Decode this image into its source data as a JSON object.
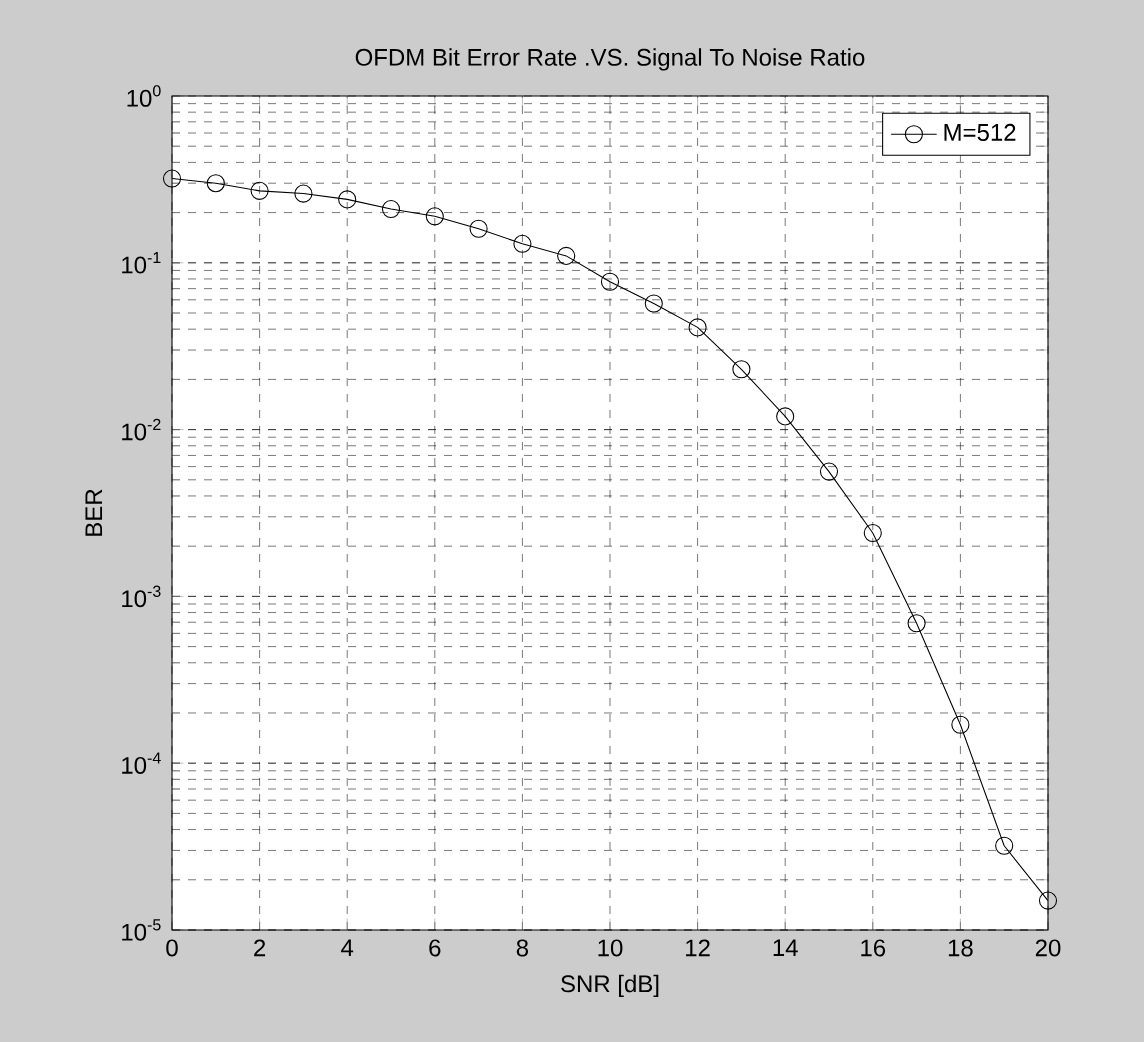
{
  "chart_data": {
    "type": "line",
    "title": "OFDM Bit Error Rate .VS. Signal To Noise Ratio",
    "xlabel": "SNR [dB]",
    "ylabel": "BER",
    "x": [
      0,
      1,
      2,
      3,
      4,
      5,
      6,
      7,
      8,
      9,
      10,
      11,
      12,
      13,
      14,
      15,
      16,
      17,
      18,
      19,
      20
    ],
    "series": [
      {
        "name": "M=512",
        "color": "#000000",
        "values": [
          0.32,
          0.3,
          0.27,
          0.26,
          0.24,
          0.21,
          0.19,
          0.16,
          0.13,
          0.11,
          0.077,
          0.057,
          0.041,
          0.023,
          0.012,
          0.0056,
          0.0024,
          0.00069,
          0.00017,
          3.2e-05,
          1.5e-05
        ]
      }
    ],
    "xlim": [
      0,
      20
    ],
    "ylim": [
      1e-05,
      1
    ],
    "xticks": [
      0,
      2,
      4,
      6,
      8,
      10,
      12,
      14,
      16,
      18,
      20
    ],
    "yticks": [
      {
        "value": 1e-05,
        "label": "10$^{-5}$"
      },
      {
        "value": 0.0001,
        "label": "10$^{-4}$"
      },
      {
        "value": 0.001,
        "label": "10$^{-3}$"
      },
      {
        "value": 0.01,
        "label": "10$^{-2}$"
      },
      {
        "value": 0.1,
        "label": "10$^{-1}$"
      },
      {
        "value": 1,
        "label": "10$^{0}$"
      }
    ],
    "log": "y",
    "grid": true,
    "legend": "top right",
    "marker": "circle",
    "line_style": "solid"
  }
}
